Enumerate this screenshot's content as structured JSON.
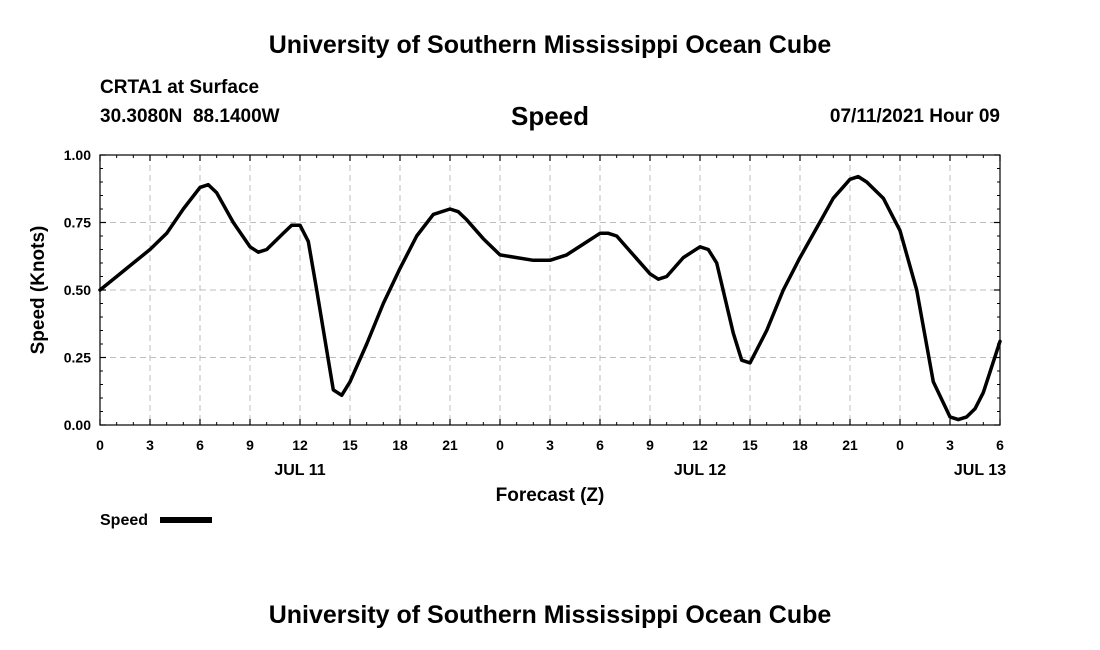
{
  "header": {
    "title": "University of Southern Mississippi Ocean Cube",
    "station": "CRTA1 at Surface",
    "coords": "30.3080N  88.1400W",
    "variable": "Speed",
    "datetime": "07/11/2021 Hour 09"
  },
  "footer": {
    "title": "University of Southern Mississippi Ocean Cube"
  },
  "colors": {
    "line": "#000000",
    "grid": "#bdbdbd",
    "background": "#ffffff"
  },
  "chart_data": {
    "type": "line",
    "title": "Speed",
    "xlabel": "Forecast (Z)",
    "ylabel": "Speed (Knots)",
    "xlim": [
      0,
      54
    ],
    "ylim": [
      0,
      1
    ],
    "x_ticks": [
      0,
      3,
      6,
      9,
      12,
      15,
      18,
      21,
      24,
      27,
      30,
      33,
      36,
      39,
      42,
      45,
      48,
      51,
      54
    ],
    "x_tick_labels": [
      "0",
      "3",
      "6",
      "9",
      "12",
      "15",
      "18",
      "21",
      "0",
      "3",
      "6",
      "9",
      "12",
      "15",
      "18",
      "21",
      "0",
      "3",
      "6"
    ],
    "y_ticks": [
      0,
      0.25,
      0.5,
      0.75,
      1.0
    ],
    "y_tick_labels": [
      "0.00",
      "0.25",
      "0.50",
      "0.75",
      "1.00"
    ],
    "date_labels": [
      {
        "x": 12,
        "label": "JUL 11"
      },
      {
        "x": 36,
        "label": "JUL 12"
      },
      {
        "x": 52.8,
        "label": "JUL 13"
      }
    ],
    "grid": true,
    "legend": {
      "label": "Speed",
      "position": "bottom-left"
    },
    "series": [
      {
        "name": "Speed",
        "x": [
          0,
          1,
          2,
          3,
          4,
          5,
          6,
          6.5,
          7,
          8,
          9,
          9.5,
          10,
          11,
          11.5,
          12,
          12.5,
          13,
          14,
          14.5,
          15,
          16,
          17,
          18,
          19,
          20,
          21,
          21.5,
          22,
          23,
          24,
          25,
          26,
          27,
          28,
          29,
          30,
          30.5,
          31,
          32,
          33,
          33.5,
          34,
          35,
          36,
          36.5,
          37,
          38,
          38.5,
          39,
          40,
          41,
          42,
          43,
          44,
          45,
          45.5,
          46,
          47,
          48,
          49,
          50,
          51,
          51.5,
          52,
          52.5,
          53,
          54
        ],
        "values": [
          0.5,
          0.55,
          0.6,
          0.65,
          0.71,
          0.8,
          0.88,
          0.89,
          0.86,
          0.75,
          0.66,
          0.64,
          0.65,
          0.71,
          0.74,
          0.74,
          0.68,
          0.5,
          0.13,
          0.11,
          0.16,
          0.3,
          0.45,
          0.58,
          0.7,
          0.78,
          0.8,
          0.79,
          0.76,
          0.69,
          0.63,
          0.62,
          0.61,
          0.61,
          0.63,
          0.67,
          0.71,
          0.71,
          0.7,
          0.63,
          0.56,
          0.54,
          0.55,
          0.62,
          0.66,
          0.65,
          0.6,
          0.34,
          0.24,
          0.23,
          0.35,
          0.5,
          0.62,
          0.73,
          0.84,
          0.91,
          0.92,
          0.9,
          0.84,
          0.72,
          0.5,
          0.16,
          0.03,
          0.02,
          0.03,
          0.06,
          0.12,
          0.31
        ]
      }
    ]
  }
}
